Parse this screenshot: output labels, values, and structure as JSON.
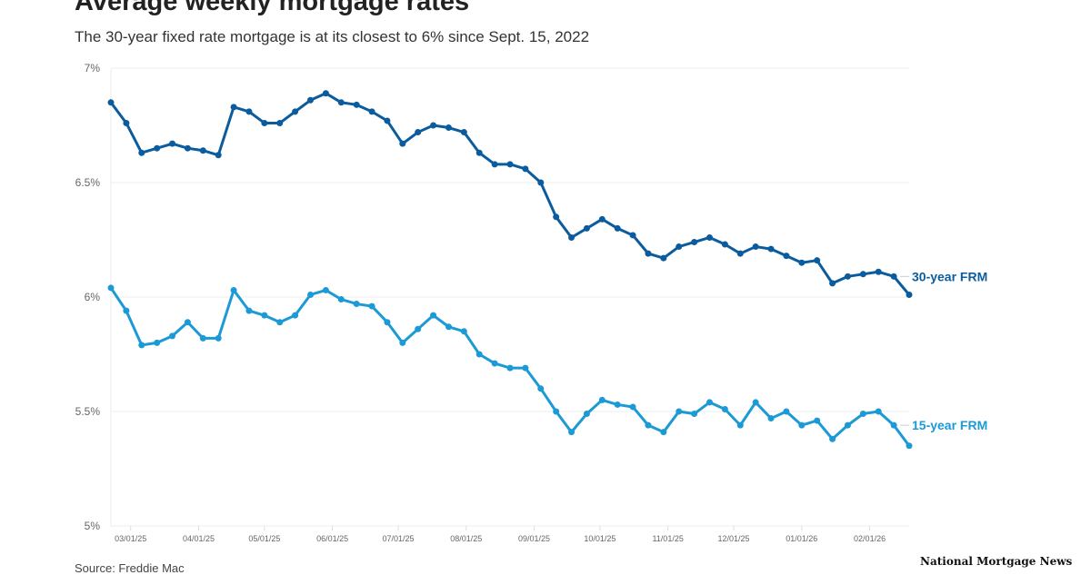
{
  "title": "Average weekly mortgage rates",
  "subtitle": "The 30-year fixed rate mortgage is at its closest to 6% since Sept. 15, 2022",
  "source": "Source: Freddie Mac",
  "logo": "National Mortgage News",
  "chart_data": {
    "type": "line",
    "title": "Average weekly mortgage rates",
    "xlabel": "",
    "ylabel": "",
    "ylim": [
      5,
      7
    ],
    "yticks": [
      "7%",
      "6.5%",
      "6%",
      "5.5%",
      "5%"
    ],
    "ytick_values": [
      7,
      6.5,
      6,
      5.5,
      5
    ],
    "xticks": [
      "03/01/25",
      "04/01/25",
      "05/01/25",
      "06/01/25",
      "07/01/25",
      "08/01/25",
      "09/01/25",
      "10/01/25",
      "11/01/25",
      "12/01/25",
      "01/01/26",
      "02/01/26"
    ],
    "xtick_dates": [
      "2025-03-01",
      "2025-04-01",
      "2025-05-01",
      "2025-06-01",
      "2025-07-01",
      "2025-08-01",
      "2025-09-01",
      "2025-10-01",
      "2025-11-01",
      "2025-12-01",
      "2026-01-01",
      "2026-02-01"
    ],
    "xlim": [
      "2025-02-20",
      "2026-02-19"
    ],
    "grid": true,
    "x": [
      "2025-02-20",
      "2025-02-27",
      "2025-03-06",
      "2025-03-13",
      "2025-03-20",
      "2025-03-27",
      "2025-04-03",
      "2025-04-10",
      "2025-04-17",
      "2025-04-24",
      "2025-05-01",
      "2025-05-08",
      "2025-05-15",
      "2025-05-22",
      "2025-05-29",
      "2025-06-05",
      "2025-06-12",
      "2025-06-19",
      "2025-06-26",
      "2025-07-03",
      "2025-07-10",
      "2025-07-17",
      "2025-07-24",
      "2025-07-31",
      "2025-08-07",
      "2025-08-14",
      "2025-08-21",
      "2025-08-28",
      "2025-09-04",
      "2025-09-11",
      "2025-09-18",
      "2025-09-25",
      "2025-10-02",
      "2025-10-09",
      "2025-10-16",
      "2025-10-23",
      "2025-10-30",
      "2025-11-06",
      "2025-11-13",
      "2025-11-20",
      "2025-11-27",
      "2025-12-04",
      "2025-12-11",
      "2025-12-18",
      "2025-12-25",
      "2026-01-01",
      "2026-01-08",
      "2026-01-15",
      "2026-01-22",
      "2026-01-29",
      "2026-02-05",
      "2026-02-12",
      "2026-02-19"
    ],
    "series": [
      {
        "name": "30-year FRM",
        "color": "#0b5c9e",
        "values": [
          6.85,
          6.76,
          6.63,
          6.65,
          6.67,
          6.65,
          6.64,
          6.62,
          6.83,
          6.81,
          6.76,
          6.76,
          6.81,
          6.86,
          6.89,
          6.85,
          6.84,
          6.81,
          6.77,
          6.67,
          6.72,
          6.75,
          6.74,
          6.72,
          6.63,
          6.58,
          6.58,
          6.56,
          6.5,
          6.35,
          6.26,
          6.3,
          6.34,
          6.3,
          6.27,
          6.19,
          6.17,
          6.22,
          6.24,
          6.26,
          6.23,
          6.19,
          6.22,
          6.21,
          6.18,
          6.15,
          6.16,
          6.06,
          6.09,
          6.1,
          6.11,
          6.09,
          6.01
        ]
      },
      {
        "name": "15-year FRM",
        "color": "#1b9ad6",
        "values": [
          6.04,
          5.94,
          5.79,
          5.8,
          5.83,
          5.89,
          5.82,
          5.82,
          6.03,
          5.94,
          5.92,
          5.89,
          5.92,
          6.01,
          6.03,
          5.99,
          5.97,
          5.96,
          5.89,
          5.8,
          5.86,
          5.92,
          5.87,
          5.85,
          5.75,
          5.71,
          5.69,
          5.69,
          5.6,
          5.5,
          5.41,
          5.49,
          5.55,
          5.53,
          5.52,
          5.44,
          5.41,
          5.5,
          5.49,
          5.54,
          5.51,
          5.44,
          5.54,
          5.47,
          5.5,
          5.44,
          5.46,
          5.38,
          5.44,
          5.49,
          5.5,
          5.44,
          5.35
        ]
      }
    ],
    "legend": "inline-right"
  }
}
